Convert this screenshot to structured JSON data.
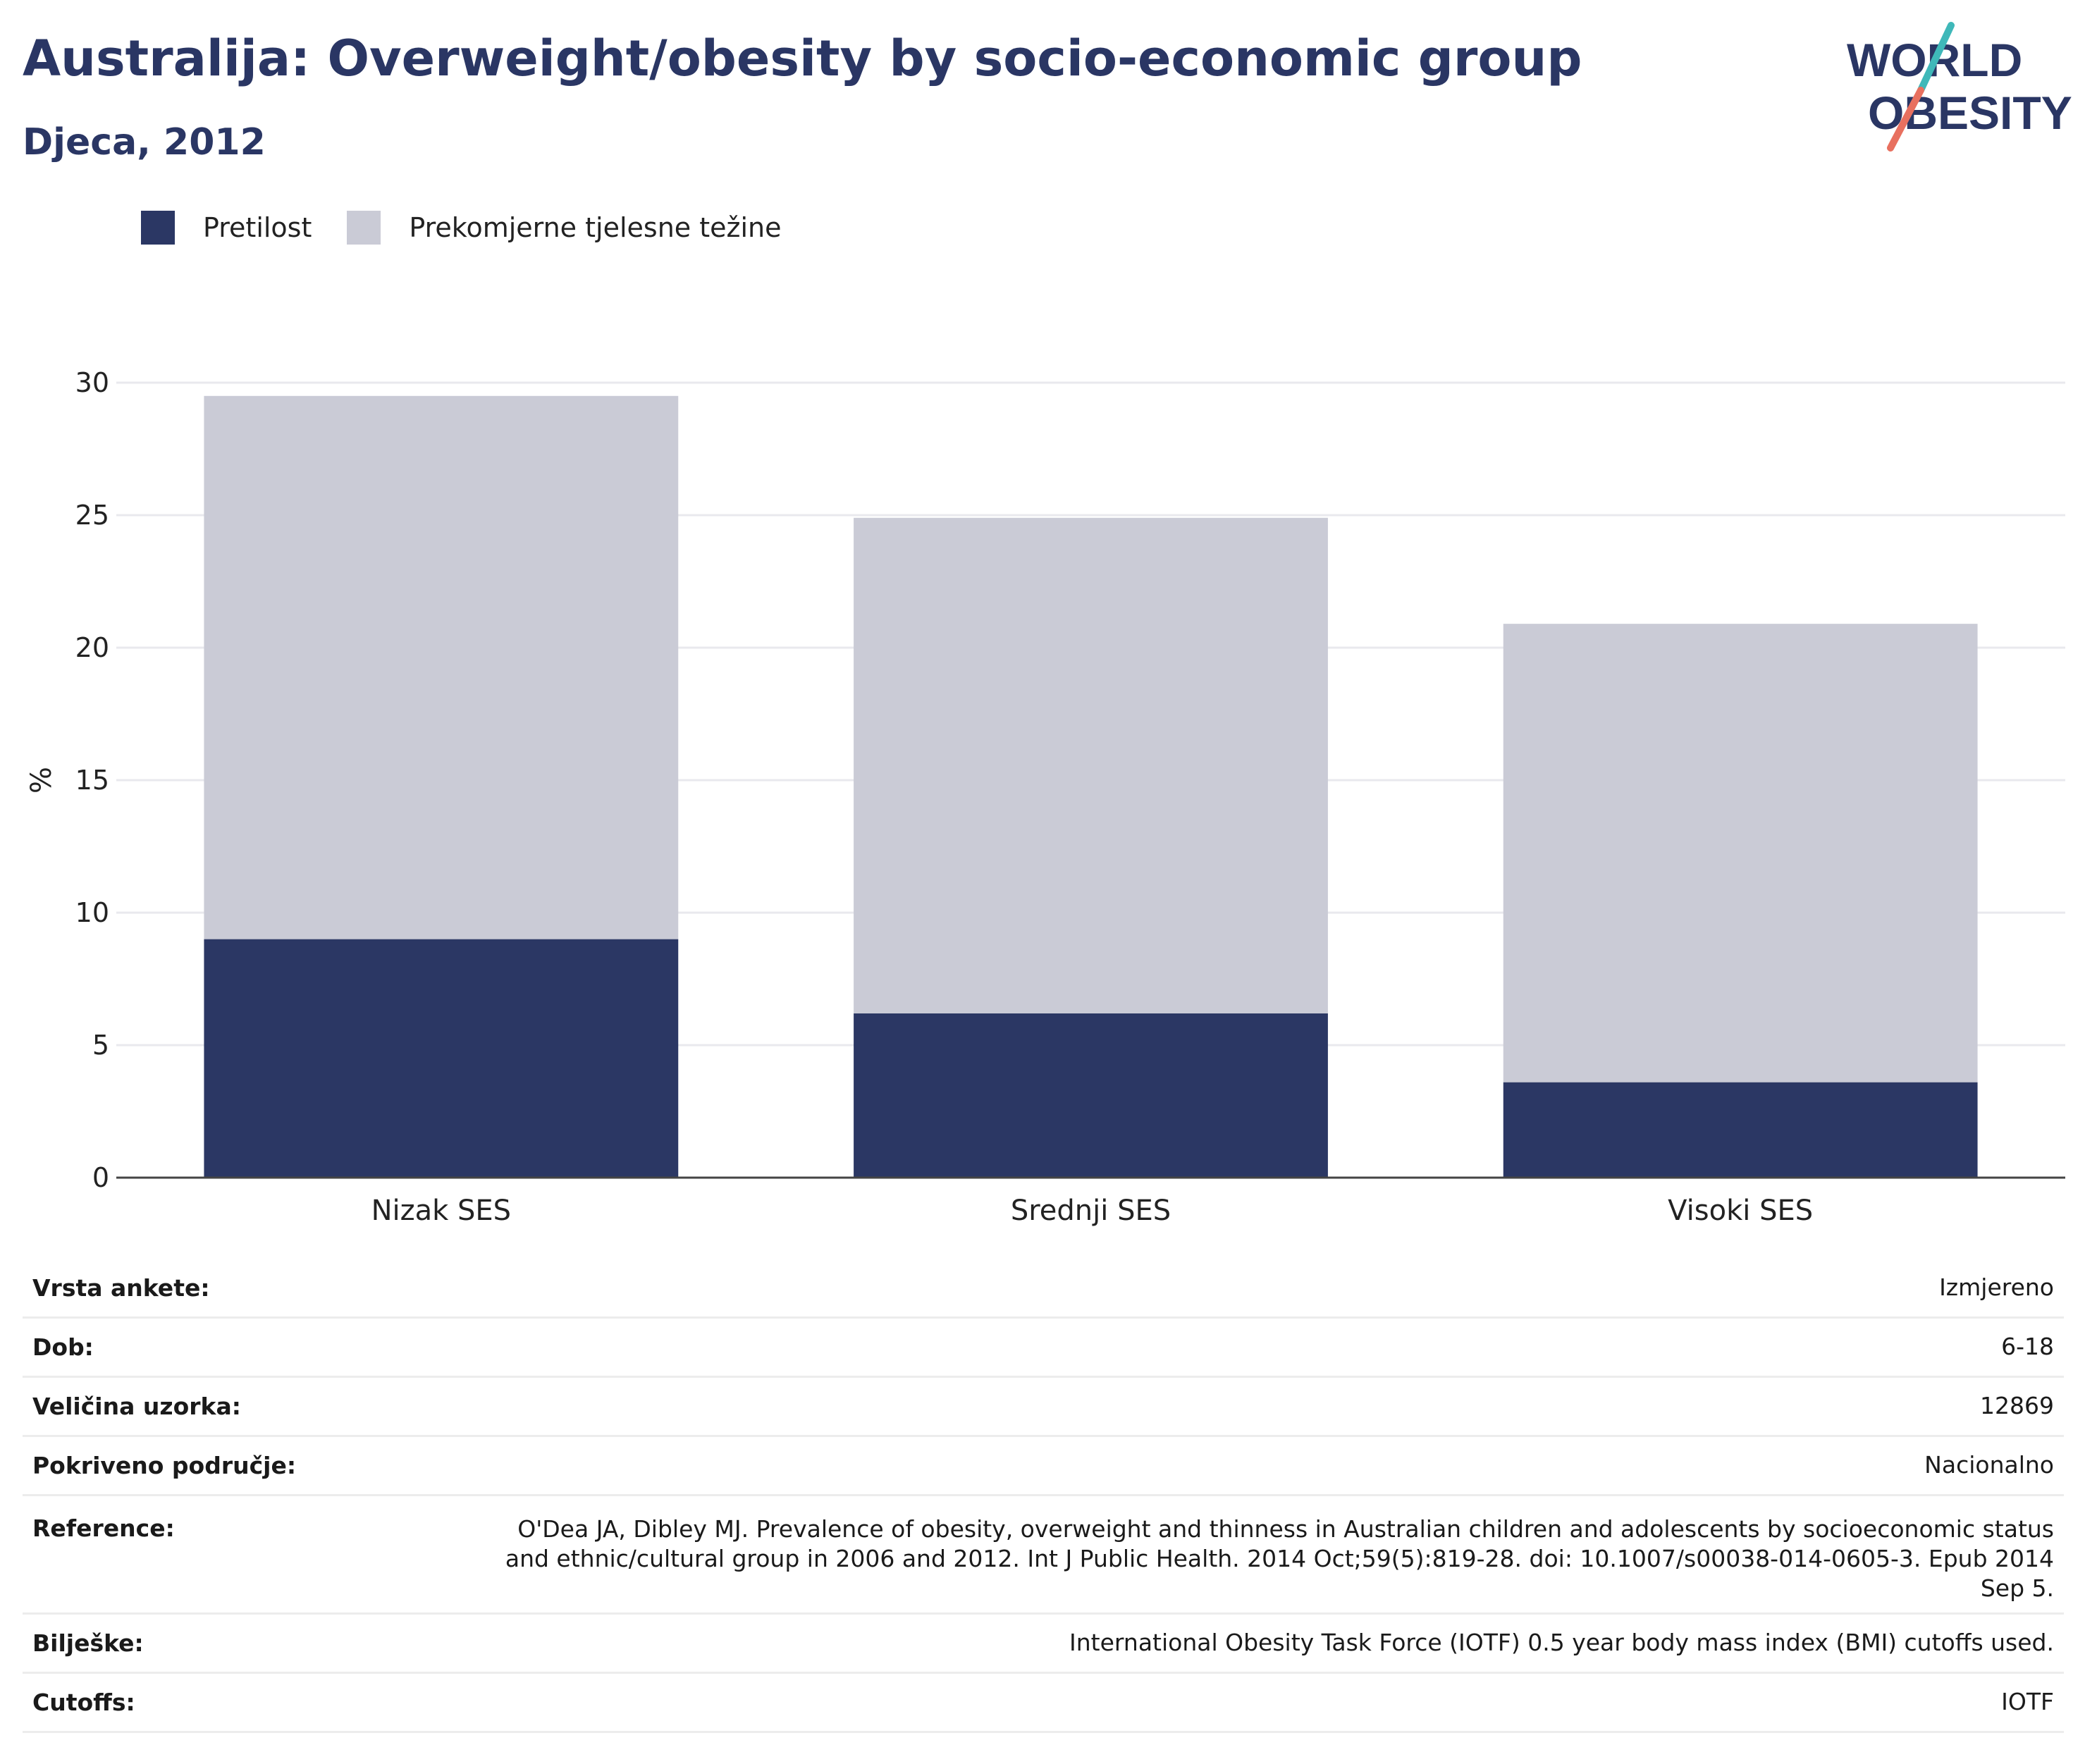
{
  "title": "Australija: Overweight/obesity by socio-economic group",
  "subtitle": "Djeca, 2012",
  "logo": {
    "line1": "WORLD",
    "line2": "OBESITY"
  },
  "colors": {
    "obesity": "#2b3764",
    "overweight": "#cacbd6",
    "text": "#2a3664",
    "grid": "#e9e9ee",
    "axis": "#444444",
    "logo_teal": "#3fb8b9",
    "logo_coral": "#e8705f"
  },
  "legend": [
    {
      "label": "Pretilost",
      "color": "#2b3764"
    },
    {
      "label": "Prekomjerne tjelesne težine",
      "color": "#cacbd6"
    }
  ],
  "chart_data": {
    "type": "bar",
    "stacked": true,
    "categories": [
      "Nizak SES",
      "Srednji SES",
      "Visoki SES"
    ],
    "series": [
      {
        "name": "Pretilost",
        "values": [
          9.0,
          6.2,
          3.6
        ]
      },
      {
        "name": "Prekomjerne tjelesne težine",
        "values": [
          20.5,
          18.7,
          17.3
        ]
      }
    ],
    "ylabel": "%",
    "ylim": [
      0,
      30
    ],
    "yticks": [
      0,
      5,
      10,
      15,
      20,
      25,
      30
    ],
    "grid": true,
    "legend_position": "top-left"
  },
  "meta": [
    {
      "key": "Vrsta ankete:",
      "value": "Izmjereno"
    },
    {
      "key": "Dob:",
      "value": "6-18"
    },
    {
      "key": "Veličina uzorka:",
      "value": "12869"
    },
    {
      "key": "Pokriveno područje:",
      "value": "Nacionalno"
    },
    {
      "key": "Reference:",
      "value": "O'Dea JA, Dibley MJ. Prevalence of obesity, overweight and thinness in Australian children and adolescents by socioeconomic status and ethnic/cultural group in 2006 and 2012. Int J Public Health. 2014 Oct;59(5):819-28. doi: 10.1007/s00038-014-0605-3. Epub 2014 Sep 5."
    },
    {
      "key": "Bilješke:",
      "value": "International Obesity Task Force (IOTF) 0.5 year body mass index (BMI) cutoffs used."
    },
    {
      "key": "Cutoffs:",
      "value": "IOTF"
    }
  ]
}
